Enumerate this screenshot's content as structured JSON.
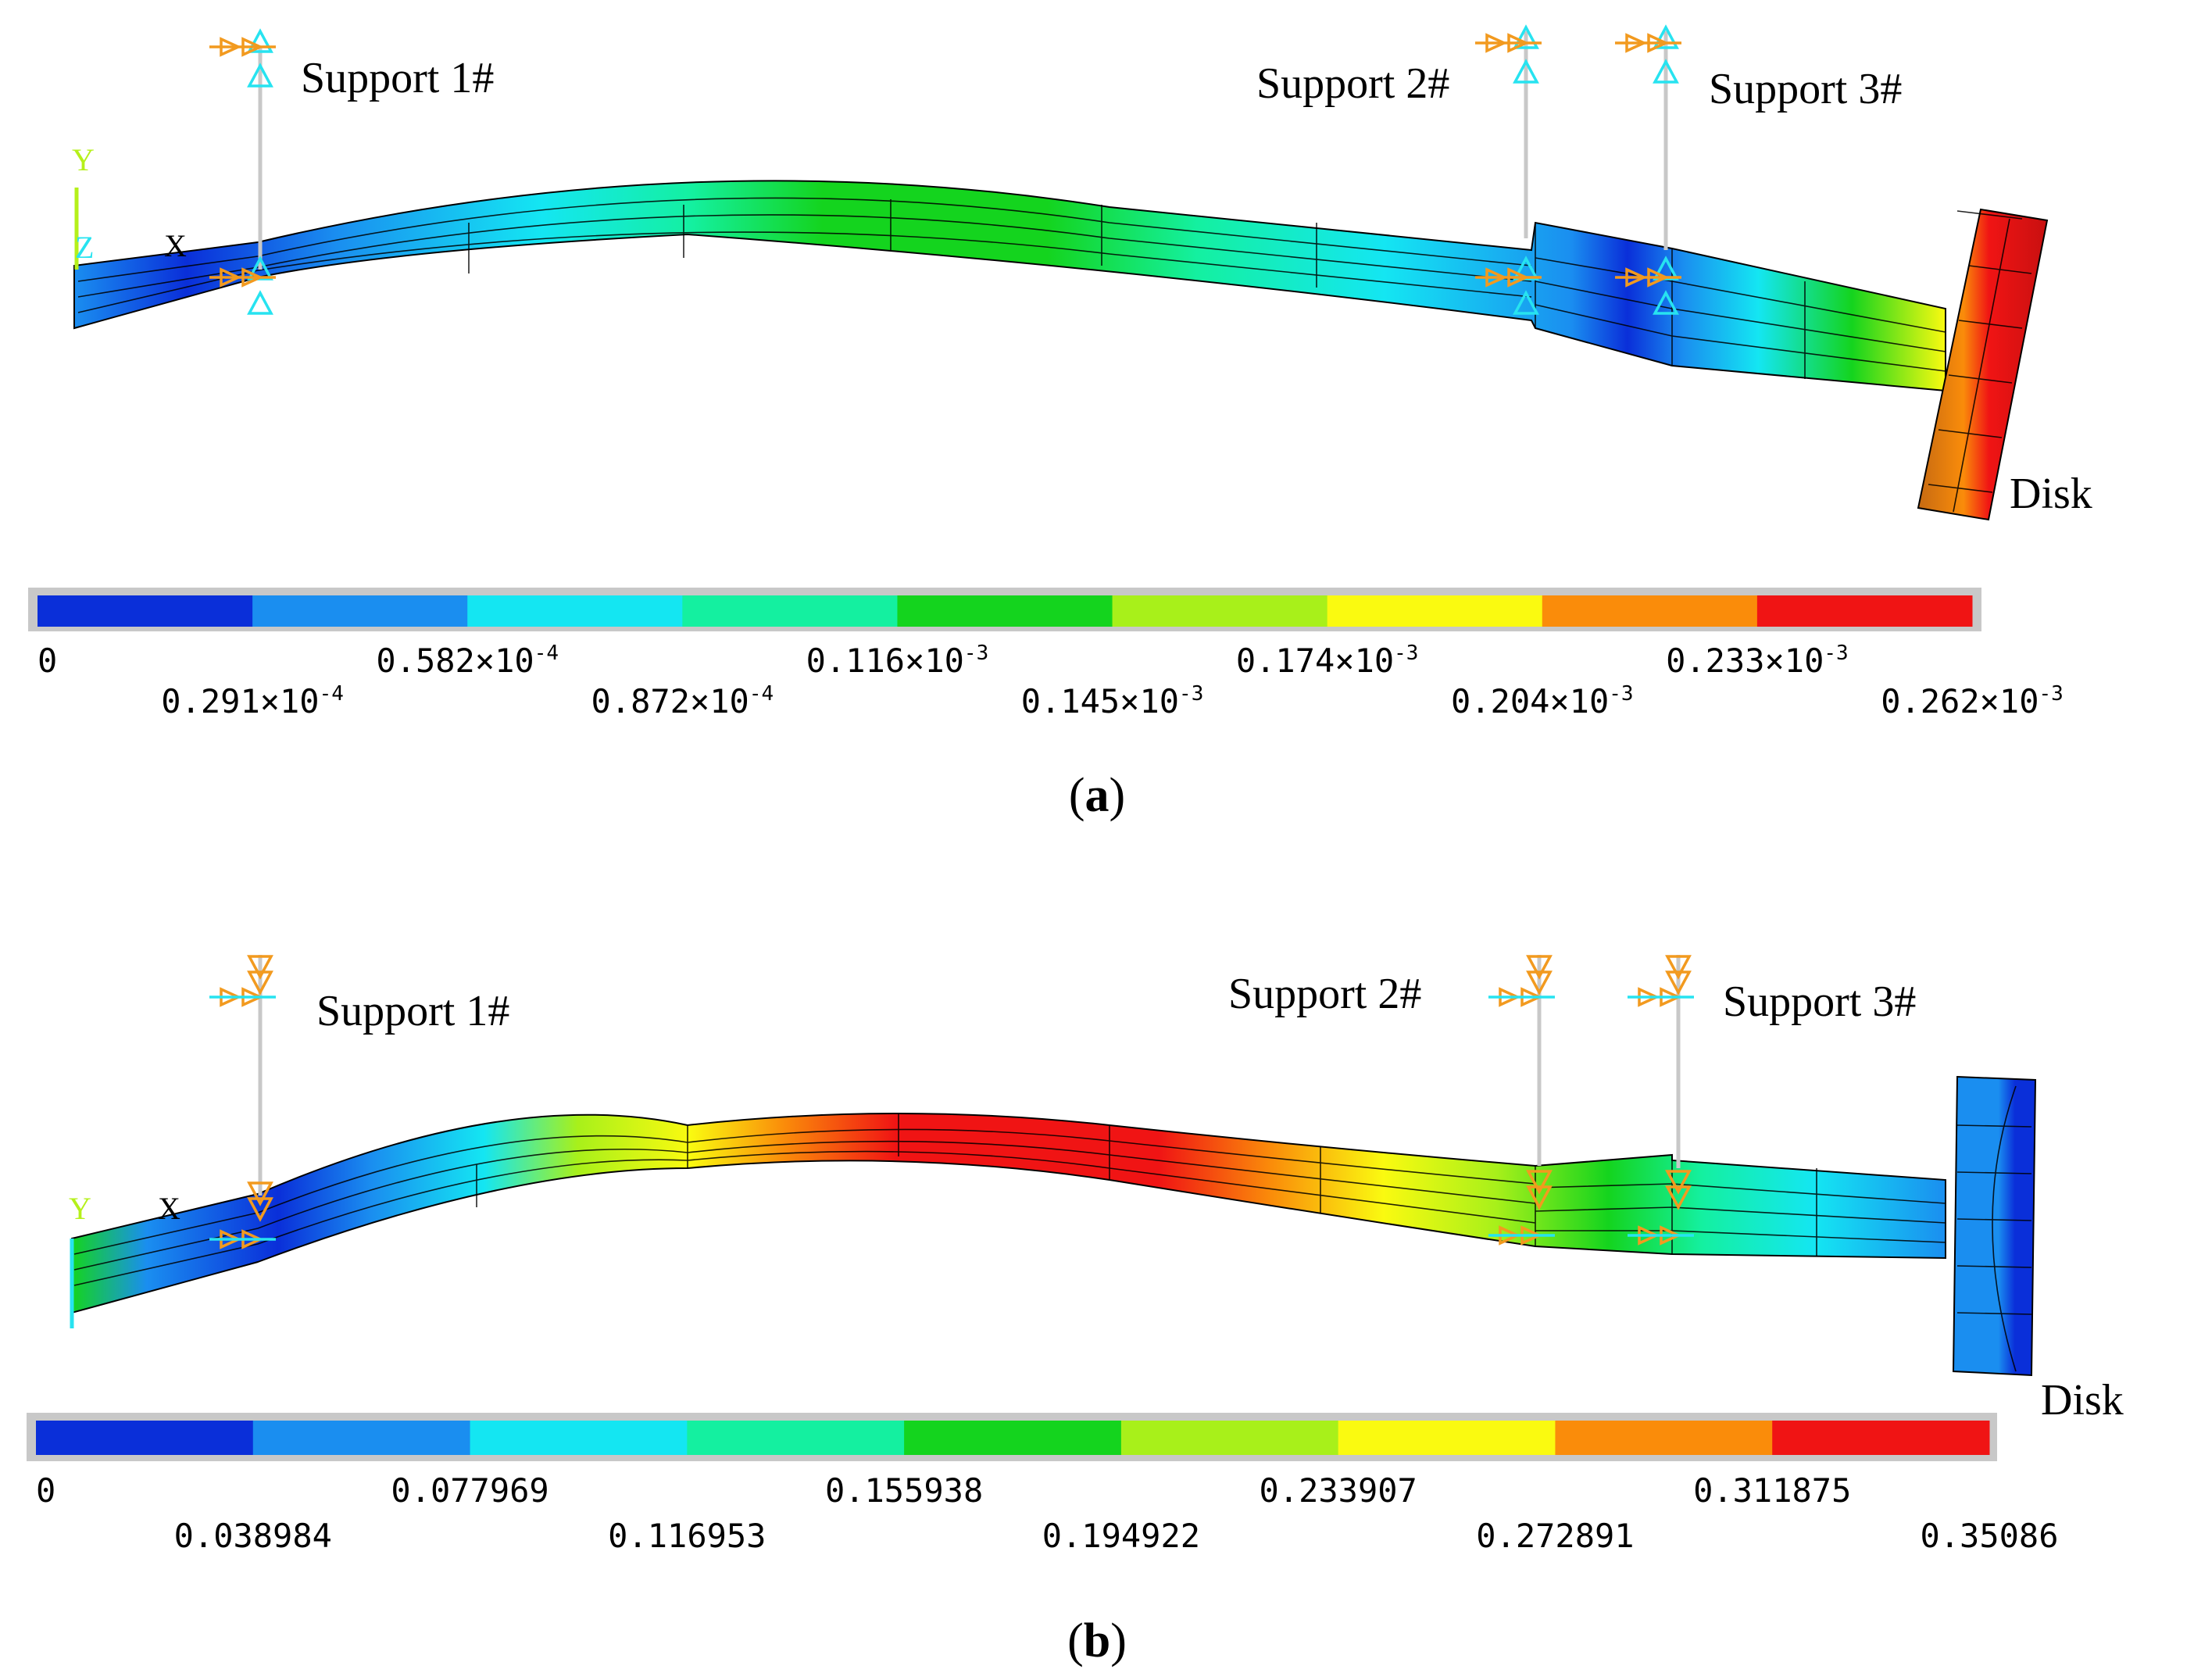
{
  "figure": {
    "panel_a": {
      "caption": "a",
      "supports": [
        "Support 1#",
        "Support 2#",
        "Support 3#"
      ],
      "disk_label": "Disk",
      "axis_labels": {
        "y": "Y",
        "z": "Z",
        "x": "X"
      },
      "legend": {
        "colors": [
          "#0a2fd9",
          "#1a8ef0",
          "#14e6f2",
          "#14f0a0",
          "#14d41e",
          "#a8f01a",
          "#fafa10",
          "#fa8c0a",
          "#f01414"
        ],
        "ticks_top": [
          {
            "m": "0",
            "e": ""
          },
          {
            "m": "0.582×10",
            "e": "-4"
          },
          {
            "m": "0.116×10",
            "e": "-3"
          },
          {
            "m": "0.174×10",
            "e": "-3"
          },
          {
            "m": "0.233×10",
            "e": "-3"
          }
        ],
        "ticks_bottom": [
          {
            "m": "0.291×10",
            "e": "-4"
          },
          {
            "m": "0.872×10",
            "e": "-4"
          },
          {
            "m": "0.145×10",
            "e": "-3"
          },
          {
            "m": "0.204×10",
            "e": "-3"
          },
          {
            "m": "0.262×10",
            "e": "-3"
          }
        ]
      }
    },
    "panel_b": {
      "caption": "b",
      "supports": [
        "Support 1#",
        "Support 2#",
        "Support 3#"
      ],
      "disk_label": "Disk",
      "axis_labels": {
        "y": "Y",
        "x": "X"
      },
      "legend": {
        "colors": [
          "#0a2fd9",
          "#1a8ef0",
          "#14e6f2",
          "#14f0a0",
          "#14d41e",
          "#a8f01a",
          "#fafa10",
          "#fa8c0a",
          "#f01414"
        ],
        "ticks_top": [
          "0",
          "0.077969",
          "0.155938",
          "0.233907",
          "0.311875"
        ],
        "ticks_bottom": [
          "0.038984",
          "0.116953",
          "0.194922",
          "0.272891",
          "0.35086"
        ]
      }
    }
  }
}
